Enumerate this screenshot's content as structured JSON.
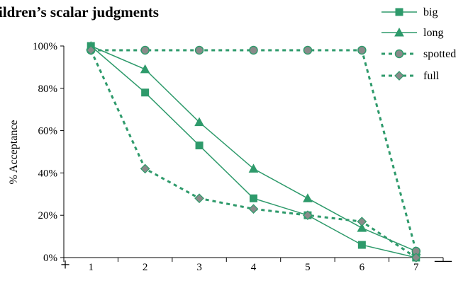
{
  "chart_data": {
    "type": "line",
    "title": "ildren’s scalar judgments",
    "xlabel": "",
    "ylabel": "% Acceptance",
    "x": [
      1,
      2,
      3,
      4,
      5,
      6,
      7
    ],
    "x_tick_labels": [
      "1",
      "2",
      "3",
      "4",
      "5",
      "6",
      "7"
    ],
    "ylim": [
      0,
      100
    ],
    "y_tick_labels": [
      "0%",
      "20%",
      "40%",
      "60%",
      "80%",
      "100%"
    ],
    "y_ticks": [
      0,
      20,
      40,
      60,
      80,
      100
    ],
    "left_end_label": "+",
    "right_end_label": "—",
    "grid": false,
    "legend_position": "top-right",
    "series": [
      {
        "name": "big",
        "marker": "square",
        "line": "solid",
        "color": "#2e9a6b",
        "values": [
          100,
          78,
          53,
          28,
          20,
          6,
          0
        ]
      },
      {
        "name": "long",
        "marker": "triangle",
        "line": "solid",
        "color": "#2e9a6b",
        "values": [
          100,
          89,
          64,
          42,
          28,
          14,
          3
        ]
      },
      {
        "name": "spotted",
        "marker": "circle",
        "line": "dashed",
        "color": "#2e9a6b",
        "values": [
          98,
          98,
          98,
          98,
          98,
          98,
          3
        ]
      },
      {
        "name": "full",
        "marker": "diamond",
        "line": "dashed",
        "color": "#2e9a6b",
        "values": [
          98,
          42,
          28,
          23,
          20,
          17,
          0
        ]
      }
    ]
  }
}
